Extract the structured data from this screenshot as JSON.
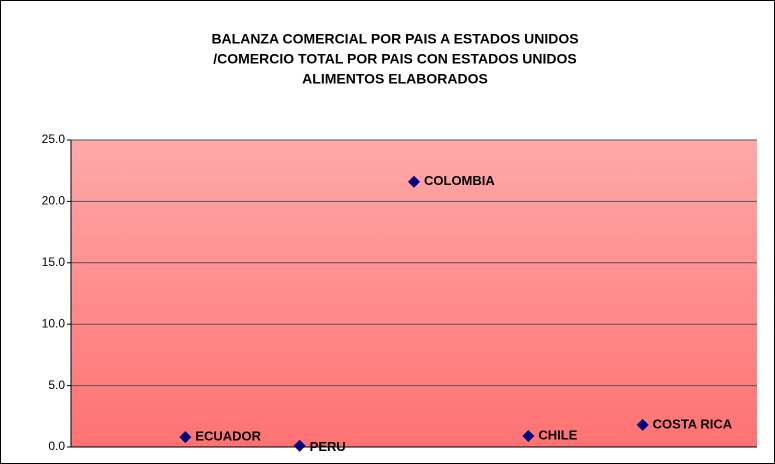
{
  "chart_data": {
    "type": "scatter",
    "title": [
      "BALANZA COMERCIAL POR PAIS A ESTADOS UNIDOS",
      "/COMERCIO TOTAL POR PAIS  CON ESTADOS UNIDOS",
      "ALIMENTOS ELABORADOS"
    ],
    "x": [
      1,
      2,
      3,
      4,
      5
    ],
    "values": [
      0.8,
      0.1,
      21.6,
      0.9,
      1.8
    ],
    "point_labels": [
      "ECUADOR",
      "PERU",
      "COLOMBIA",
      "CHILE",
      "COSTA RICA"
    ],
    "color": "#000080",
    "xlim": [
      0,
      6
    ],
    "ylim": [
      0,
      25
    ],
    "yticks": [
      {
        "value": 0,
        "label": "0.0"
      },
      {
        "value": 5,
        "label": "5.0"
      },
      {
        "value": 10,
        "label": "10.0"
      },
      {
        "value": 15,
        "label": "15.0"
      },
      {
        "value": 20,
        "label": "20.0"
      },
      {
        "value": 25,
        "label": "25.0"
      }
    ],
    "grid": true
  }
}
